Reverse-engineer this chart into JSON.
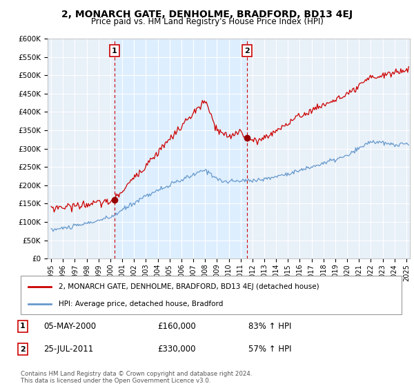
{
  "title": "2, MONARCH GATE, DENHOLME, BRADFORD, BD13 4EJ",
  "subtitle": "Price paid vs. HM Land Registry's House Price Index (HPI)",
  "legend_line1": "2, MONARCH GATE, DENHOLME, BRADFORD, BD13 4EJ (detached house)",
  "legend_line2": "HPI: Average price, detached house, Bradford",
  "footnote": "Contains HM Land Registry data © Crown copyright and database right 2024.\nThis data is licensed under the Open Government Licence v3.0.",
  "sale1_date": "05-MAY-2000",
  "sale1_price": "£160,000",
  "sale1_hpi": "83% ↑ HPI",
  "sale2_date": "25-JUL-2011",
  "sale2_price": "£330,000",
  "sale2_hpi": "57% ↑ HPI",
  "property_color": "#cc0000",
  "hpi_color": "#6699cc",
  "ylim": [
    0,
    600000
  ],
  "yticks": [
    0,
    50000,
    100000,
    150000,
    200000,
    250000,
    300000,
    350000,
    400000,
    450000,
    500000,
    550000,
    600000
  ],
  "ytick_labels": [
    "£0",
    "£50K",
    "£100K",
    "£150K",
    "£200K",
    "£250K",
    "£300K",
    "£350K",
    "£400K",
    "£450K",
    "£500K",
    "£550K",
    "£600K"
  ],
  "xlim_start": 1994.7,
  "xlim_end": 2025.3,
  "sale1_x": 2000.35,
  "sale1_y": 160000,
  "sale2_x": 2011.55,
  "sale2_y": 330000,
  "vline1_x": 2000.35,
  "vline2_x": 2011.55,
  "shade_color": "#ddeeff",
  "bg_color": "#e8f0f8"
}
